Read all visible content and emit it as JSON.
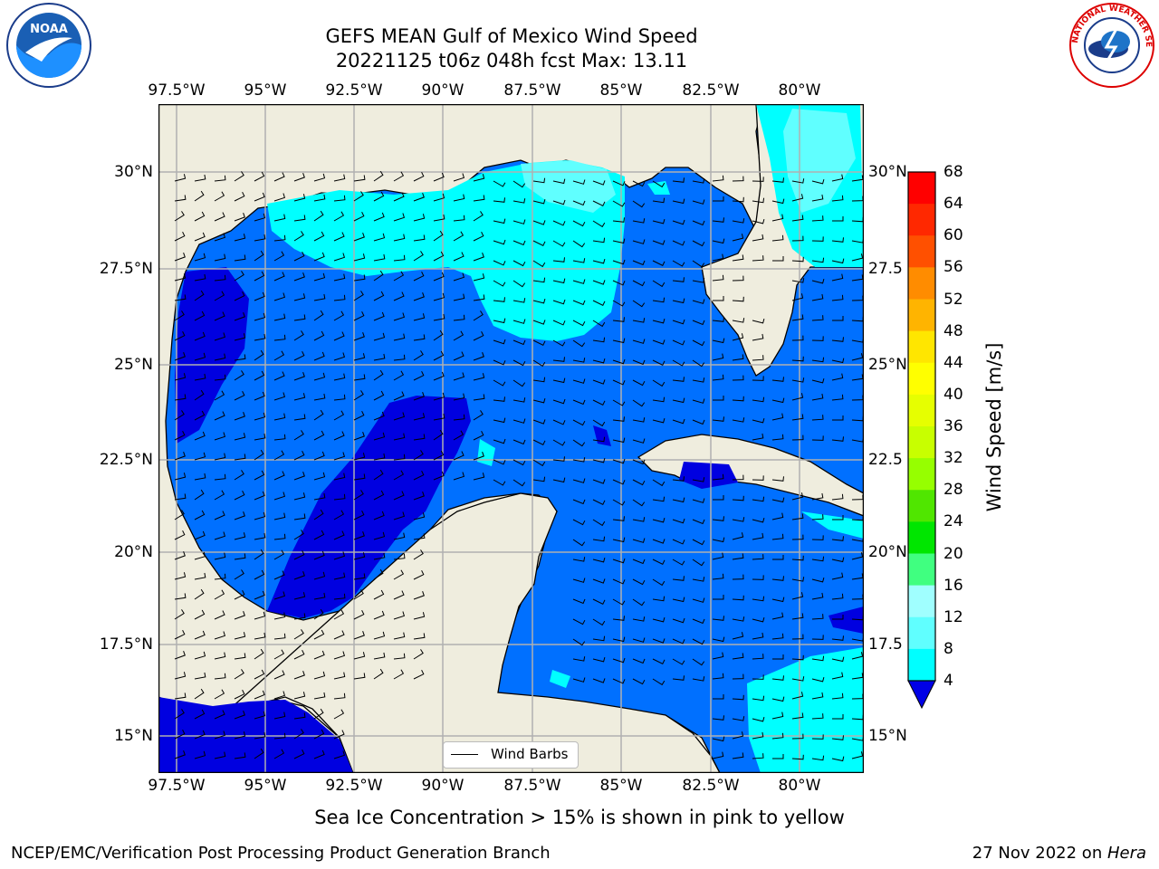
{
  "title": {
    "line1": "GEFS MEAN Gulf of Mexico Wind Speed",
    "line2": "20221125 t06z 048h fcst   Max: 13.11"
  },
  "logos": {
    "noara": {
      "icon": "noaa-logo",
      "text": "NOAA"
    },
    "nws": {
      "icon": "nws-logo",
      "text": "NATIONAL WEATHER SERVICE"
    }
  },
  "map": {
    "lon_ticks": [
      "97.5°W",
      "95°W",
      "92.5°W",
      "90°W",
      "87.5°W",
      "85°W",
      "82.5°W",
      "80°W"
    ],
    "lat_ticks_left": [
      "30°N",
      "27.5°N",
      "25°N",
      "22.5°N",
      "20°N",
      "17.5°N",
      "15°N"
    ],
    "lat_ticks_right": [
      "30°N",
      "27.5",
      "25°N",
      "22.5",
      "20°N",
      "17.5",
      "15°N"
    ],
    "legend_label": "Wind Barbs",
    "colors": {
      "land": "#efedde",
      "level_4_8": "#0070ff",
      "level_8_12": "#00ffff",
      "level_under_4": "#0000e0",
      "level_12_16": "#60ffff",
      "grid": "#b0b0b0"
    }
  },
  "colorbar": {
    "label": "Wind Speed [m/s]",
    "tick_labels": [
      "68",
      "64",
      "60",
      "56",
      "52",
      "48",
      "44",
      "40",
      "36",
      "32",
      "28",
      "24",
      "20",
      "16",
      "12",
      "8",
      "4"
    ],
    "colors": [
      "#ff0000",
      "#ff2800",
      "#ff5000",
      "#ff8c00",
      "#ffb400",
      "#ffe600",
      "#ffff00",
      "#e6ff00",
      "#c8ff00",
      "#96ff00",
      "#50e600",
      "#00e600",
      "#40ff80",
      "#a0ffff",
      "#60ffff",
      "#00ffff",
      "#0070ff"
    ],
    "underflow_color": "#0000e6"
  },
  "caption": "Sea Ice Concentration > 15% is shown in pink to yellow",
  "footer": {
    "left": "NCEP/EMC/Verification Post Processing Product Generation Branch",
    "right_date": "27 Nov 2022 on ",
    "right_host": "Hera"
  }
}
